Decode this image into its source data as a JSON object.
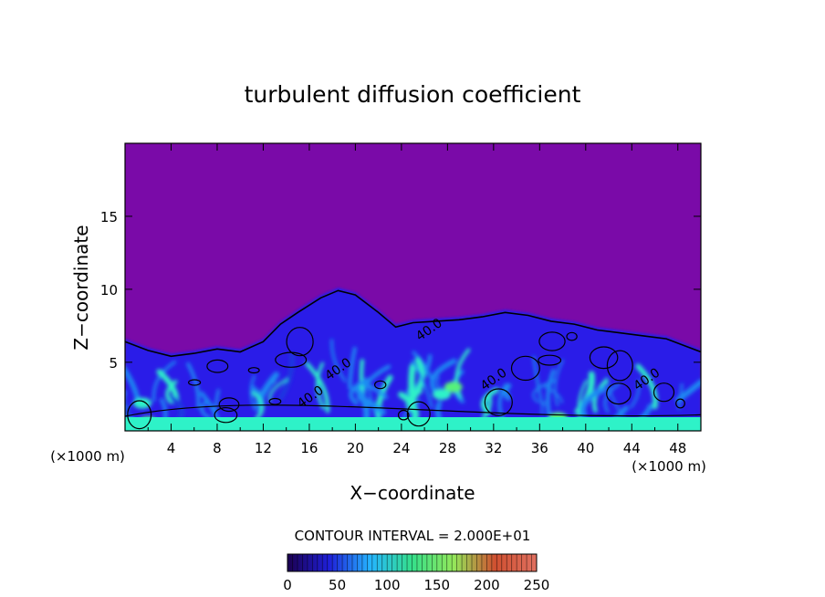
{
  "chart_data": {
    "type": "heatmap",
    "title": "turbulent diffusion coefficient",
    "xlabel": "X−coordinate",
    "ylabel": "Z−coordinate",
    "x_unit": "(×1000 m)",
    "y_unit": "(×1000 m)",
    "xlim": [
      0,
      50
    ],
    "ylim": [
      0.3,
      20
    ],
    "x_ticks": [
      4,
      8,
      12,
      16,
      20,
      24,
      28,
      32,
      36,
      40,
      44,
      48
    ],
    "y_ticks": [
      5,
      10,
      15
    ],
    "contour_interval_text": "CONTOUR INTERVAL = 2.000E+01",
    "contour_labels": [
      {
        "text": "40.0",
        "x": 18.7,
        "y": 4.3
      },
      {
        "text": "40.0",
        "x": 16.3,
        "y": 2.4
      },
      {
        "text": "40.0",
        "x": 26.6,
        "y": 7.0
      },
      {
        "text": "40.0",
        "x": 32.2,
        "y": 3.6
      },
      {
        "text": "40.0",
        "x": 45.5,
        "y": 3.6
      }
    ],
    "mixing_layer_top": [
      [
        0,
        6.6
      ],
      [
        2,
        6.0
      ],
      [
        4,
        5.6
      ],
      [
        6,
        5.8
      ],
      [
        8,
        6.1
      ],
      [
        10,
        5.9
      ],
      [
        12,
        6.6
      ],
      [
        13.5,
        7.8
      ],
      [
        15,
        8.6
      ],
      [
        17,
        9.6
      ],
      [
        18.5,
        10.1
      ],
      [
        20,
        9.8
      ],
      [
        22,
        8.6
      ],
      [
        23.5,
        7.6
      ],
      [
        25,
        7.9
      ],
      [
        27,
        8.0
      ],
      [
        29,
        8.1
      ],
      [
        31,
        8.3
      ],
      [
        33,
        8.6
      ],
      [
        35,
        8.4
      ],
      [
        37,
        8.0
      ],
      [
        39,
        7.8
      ],
      [
        41,
        7.4
      ],
      [
        43,
        7.2
      ],
      [
        45,
        7.0
      ],
      [
        47,
        6.8
      ],
      [
        49,
        6.2
      ],
      [
        50,
        5.9
      ]
    ],
    "colorbar": {
      "range": [
        0,
        250
      ],
      "ticks": [
        0,
        50,
        100,
        150,
        200,
        250
      ],
      "colors": [
        "#1b004f",
        "#1f1fd8",
        "#25b5ff",
        "#35e08a",
        "#93e85a",
        "#d05030",
        "#e07060"
      ]
    },
    "colors": {
      "background": "#7a0aa8",
      "low": "#2a1ee8",
      "mid": "#1f8cf2",
      "high": "#2ef2c8",
      "peak": "#56f27a",
      "contour": "#000000"
    }
  }
}
